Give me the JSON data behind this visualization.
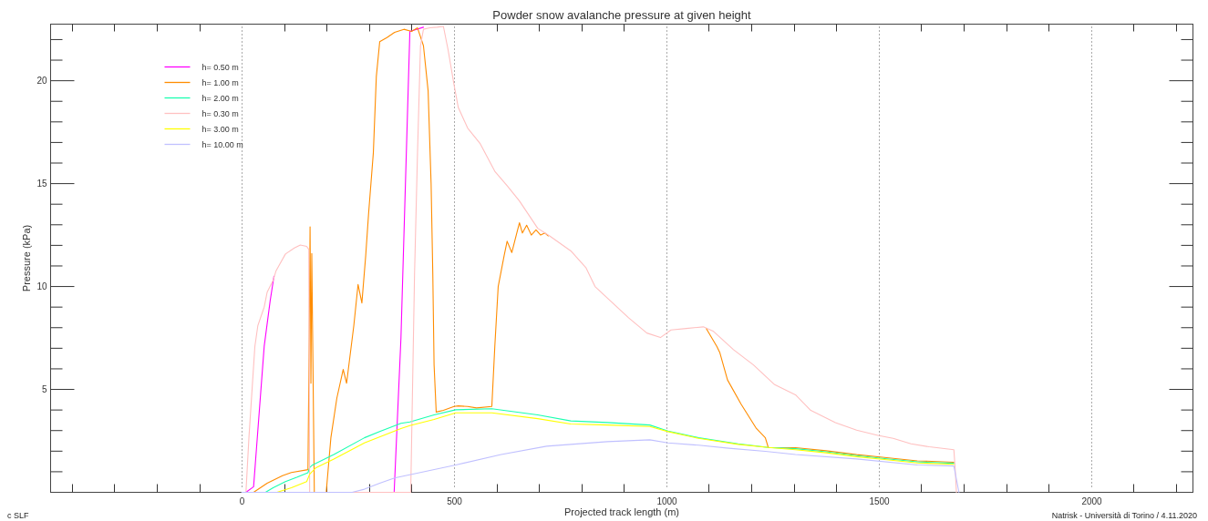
{
  "chart_data": {
    "type": "line",
    "title": "Powder snow avalanche pressure at given height",
    "xlabel": "Projected track length (m)",
    "ylabel": "Pressure (kPa)",
    "xlim": [
      -450,
      2240
    ],
    "ylim": [
      0,
      22.75
    ],
    "xticks": [
      {
        "value": -400,
        "label": null
      },
      {
        "value": -300,
        "label": null
      },
      {
        "value": -200,
        "label": null
      },
      {
        "value": -100,
        "label": null
      },
      0,
      {
        "value": 100,
        "label": null
      },
      {
        "value": 200,
        "label": null
      },
      {
        "value": 300,
        "label": null
      },
      {
        "value": 400,
        "label": null
      },
      500,
      {
        "value": 600,
        "label": null
      },
      {
        "value": 700,
        "label": null
      },
      {
        "value": 800,
        "label": null
      },
      {
        "value": 900,
        "label": null
      },
      1000,
      {
        "value": 1100,
        "label": null
      },
      {
        "value": 1200,
        "label": null
      },
      {
        "value": 1300,
        "label": null
      },
      {
        "value": 1400,
        "label": null
      },
      1500,
      {
        "value": 1600,
        "label": null
      },
      {
        "value": 1700,
        "label": null
      },
      {
        "value": 1800,
        "label": null
      },
      {
        "value": 1900,
        "label": null
      },
      2000,
      {
        "value": 2100,
        "label": null
      },
      {
        "value": 2200,
        "label": null
      }
    ],
    "yticks": [
      {
        "value": 1,
        "label": null
      },
      {
        "value": 2,
        "label": null
      },
      {
        "value": 3,
        "label": null
      },
      {
        "value": 4,
        "label": null
      },
      5,
      {
        "value": 6,
        "label": null
      },
      {
        "value": 7,
        "label": null
      },
      {
        "value": 8,
        "label": null
      },
      {
        "value": 9,
        "label": null
      },
      10,
      {
        "value": 11,
        "label": null
      },
      {
        "value": 12,
        "label": null
      },
      {
        "value": 13,
        "label": null
      },
      {
        "value": 14,
        "label": null
      },
      15,
      {
        "value": 16,
        "label": null
      },
      {
        "value": 17,
        "label": null
      },
      {
        "value": 18,
        "label": null
      },
      {
        "value": 19,
        "label": null
      },
      20,
      {
        "value": 21,
        "label": null
      },
      {
        "value": 22,
        "label": null
      }
    ],
    "grid": "x",
    "legend": "top left",
    "series": [
      {
        "name": "h= 0.50 m",
        "color": "#ff00ff",
        "x": [
          10,
          28,
          53,
          67,
          76,
          200,
          359,
          375,
          396,
          428
        ],
        "values": [
          0,
          0.27,
          7.1,
          9.3,
          10.5,
          null,
          0,
          7.5,
          22.4,
          22.6
        ]
      },
      {
        "name": "h= 1.00 m",
        "color": "#ff8c00",
        "x": [
          28,
          60,
          96,
          117,
          156,
          159,
          161,
          163,
          165,
          171,
          199,
          210,
          224,
          239,
          247,
          264,
          274,
          283,
          292,
          299,
          310,
          317,
          325,
          342,
          360,
          382,
          400,
          414,
          428,
          439,
          446,
          450,
          453,
          458,
          475,
          500,
          510,
          532,
          553,
          589,
          596,
          604,
          618,
          625,
          636,
          654,
          661,
          671,
          682,
          693,
          704,
          714,
          722,
          900,
          1094,
          1119,
          1126,
          1144,
          1176,
          1212,
          1233,
          1240,
          1304,
          1376,
          1448,
          1519,
          1591,
          1677
        ],
        "values": [
          0,
          0.44,
          0.81,
          0.96,
          1.1,
          7.5,
          12.9,
          5.3,
          11.6,
          0,
          0,
          2.65,
          4.57,
          5.97,
          5.3,
          8.1,
          10.1,
          9.2,
          11.5,
          13.6,
          16.5,
          20.2,
          21.9,
          22.1,
          22.35,
          22.5,
          22.4,
          22.57,
          21.7,
          19.5,
          15.0,
          10.6,
          6.2,
          3.9,
          3.98,
          4.17,
          4.2,
          4.17,
          4.1,
          4.17,
          7.08,
          10.0,
          11.5,
          12.2,
          11.65,
          13.1,
          12.6,
          12.98,
          12.5,
          12.75,
          12.5,
          12.6,
          12.46,
          null,
          7.96,
          7.08,
          6.78,
          5.46,
          4.28,
          3.1,
          2.65,
          2.18,
          2.17,
          2.02,
          1.83,
          1.68,
          1.53,
          1.46
        ]
      },
      {
        "name": "h= 2.00 m",
        "color": "#1affb0",
        "x": [
          56,
          74,
          103,
          131,
          156,
          160,
          167,
          217,
          289,
          325,
          375,
          396,
          453,
          504,
          589,
          697,
          775,
          861,
          961,
          1004,
          1076,
          1169,
          1240,
          1304,
          1376,
          1448,
          1519,
          1591,
          1677
        ],
        "values": [
          0,
          0.22,
          0.52,
          0.74,
          0.95,
          1.2,
          1.33,
          1.84,
          2.65,
          2.95,
          3.35,
          3.42,
          3.76,
          4.01,
          4.06,
          3.76,
          3.47,
          3.39,
          3.27,
          2.98,
          2.65,
          2.36,
          2.18,
          2.12,
          1.97,
          1.78,
          1.63,
          1.48,
          1.41
        ]
      },
      {
        "name": "h= 0.30 m",
        "color": "#ffc0c0",
        "x": [
          10,
          17,
          31,
          38,
          53,
          60,
          74,
          81,
          103,
          124,
          138,
          153,
          158,
          160,
          398,
          407,
          414,
          421,
          428,
          443,
          460,
          475,
          486,
          500,
          510,
          532,
          561,
          596,
          625,
          654,
          697,
          725,
          775,
          811,
          832,
          911,
          954,
          986,
          1011,
          1047,
          1087,
          1111,
          1158,
          1205,
          1255,
          1305,
          1340,
          1398,
          1448,
          1498,
          1534,
          1576,
          1619,
          1677,
          1680,
          1683
        ],
        "values": [
          0,
          2.65,
          7.08,
          8.1,
          9.0,
          9.73,
          10.3,
          10.77,
          11.58,
          11.87,
          12.02,
          11.95,
          11.8,
          0,
          0,
          10.6,
          16.5,
          21.7,
          22.5,
          22.57,
          22.6,
          22.64,
          21.5,
          19.8,
          18.7,
          17.7,
          16.96,
          15.6,
          14.9,
          14.16,
          12.83,
          12.46,
          11.73,
          10.9,
          10.0,
          8.48,
          7.74,
          7.52,
          7.89,
          7.96,
          8.04,
          7.82,
          6.93,
          6.19,
          5.23,
          4.72,
          3.98,
          3.39,
          3.02,
          2.77,
          2.62,
          2.36,
          2.21,
          2.07,
          1.18,
          0
        ]
      },
      {
        "name": "h= 3.00 m",
        "color": "#ffff00",
        "x": [
          83,
          117,
          153,
          160,
          174,
          217,
          289,
          375,
          396,
          453,
          504,
          589,
          697,
          775,
          861,
          961,
          1004,
          1076,
          1169,
          1240,
          1304,
          1376,
          1448,
          1519,
          1591,
          1677
        ],
        "values": [
          0,
          0.22,
          0.52,
          0.88,
          1.18,
          1.62,
          2.4,
          3.1,
          3.24,
          3.54,
          3.86,
          3.86,
          3.58,
          3.32,
          3.27,
          3.2,
          2.95,
          2.62,
          2.33,
          2.18,
          2.07,
          1.92,
          1.73,
          1.58,
          1.43,
          1.36
        ]
      },
      {
        "name": "h= 10.00 m",
        "color": "#c0c0ff",
        "x": [
          0,
          260,
          289,
          325,
          360,
          504,
          611,
          718,
          861,
          961,
          1004,
          1076,
          1147,
          1233,
          1304,
          1448,
          1591,
          1677,
          1689
        ],
        "values": [
          0,
          0,
          0.15,
          0.44,
          0.7,
          1.33,
          1.84,
          2.24,
          2.46,
          2.55,
          2.4,
          2.29,
          2.14,
          1.99,
          1.84,
          1.62,
          1.33,
          1.28,
          0
        ]
      }
    ],
    "annotations": [
      "c SLF",
      "Natrisk - Università di Torino / 4.11.2020"
    ]
  }
}
